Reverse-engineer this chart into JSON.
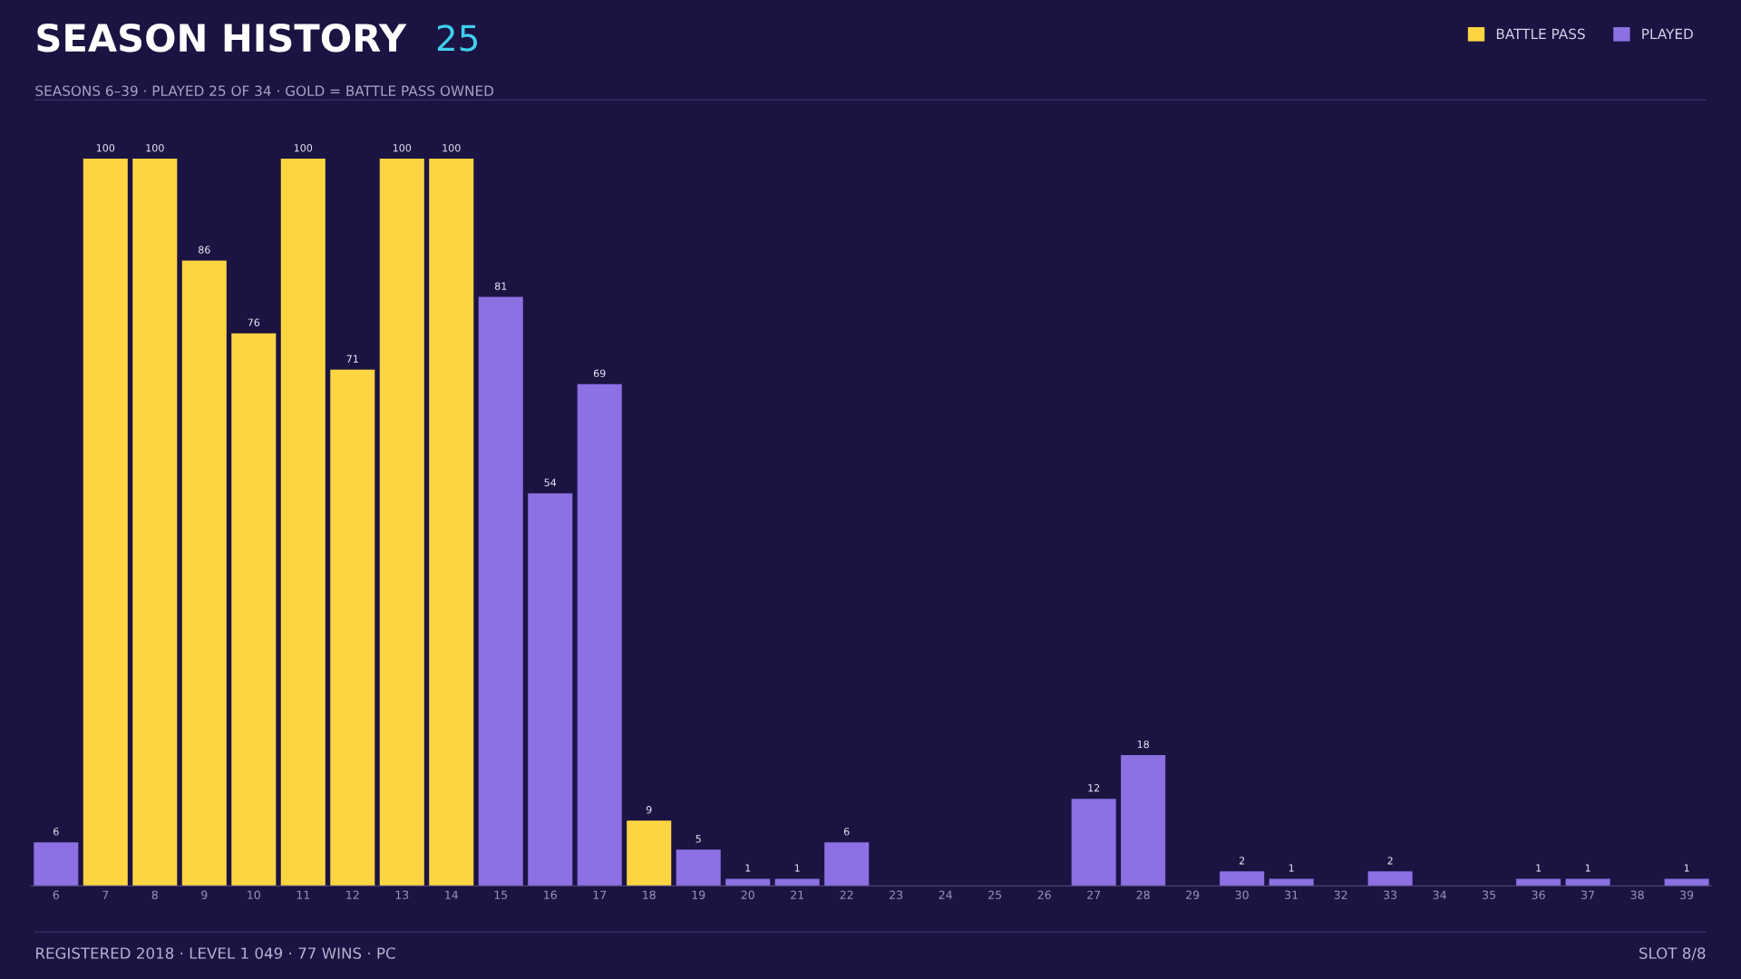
{
  "chart_data": {
    "type": "bar",
    "title": "SEASON HISTORY",
    "subtitle": "SEASONS 6–39 · PLAYED 25 OF 34 · GOLD = BATTLE PASS OWNED",
    "annotations": [
      "25",
      "REGISTERED 2018 · LEVEL 1 049 · 77 WINS · PC",
      "SLOT 8/8"
    ],
    "categories": [
      "6",
      "7",
      "8",
      "9",
      "10",
      "11",
      "12",
      "13",
      "14",
      "15",
      "16",
      "17",
      "18",
      "19",
      "20",
      "21",
      "22",
      "23",
      "24",
      "25",
      "26",
      "27",
      "28",
      "29",
      "30",
      "31",
      "32",
      "33",
      "34",
      "35",
      "36",
      "37",
      "38",
      "39"
    ],
    "series": [
      {
        "name": "BATTLE PASS",
        "color": "#fdd542",
        "values": [
          null,
          100,
          100,
          86,
          76,
          100,
          71,
          100,
          100,
          null,
          null,
          null,
          9,
          null,
          null,
          null,
          null,
          null,
          null,
          null,
          null,
          null,
          null,
          null,
          null,
          null,
          null,
          null,
          null,
          null,
          null,
          null,
          null,
          null
        ]
      },
      {
        "name": "PLAYED",
        "color": "#8c70e4",
        "values": [
          6,
          null,
          null,
          null,
          null,
          null,
          null,
          null,
          null,
          81,
          54,
          69,
          null,
          5,
          1,
          1,
          6,
          null,
          null,
          null,
          null,
          12,
          18,
          null,
          2,
          1,
          null,
          2,
          null,
          null,
          1,
          1,
          null,
          1
        ]
      }
    ],
    "data_labels": true,
    "legend": "top right",
    "grid": false,
    "tick_labels": "x"
  }
}
